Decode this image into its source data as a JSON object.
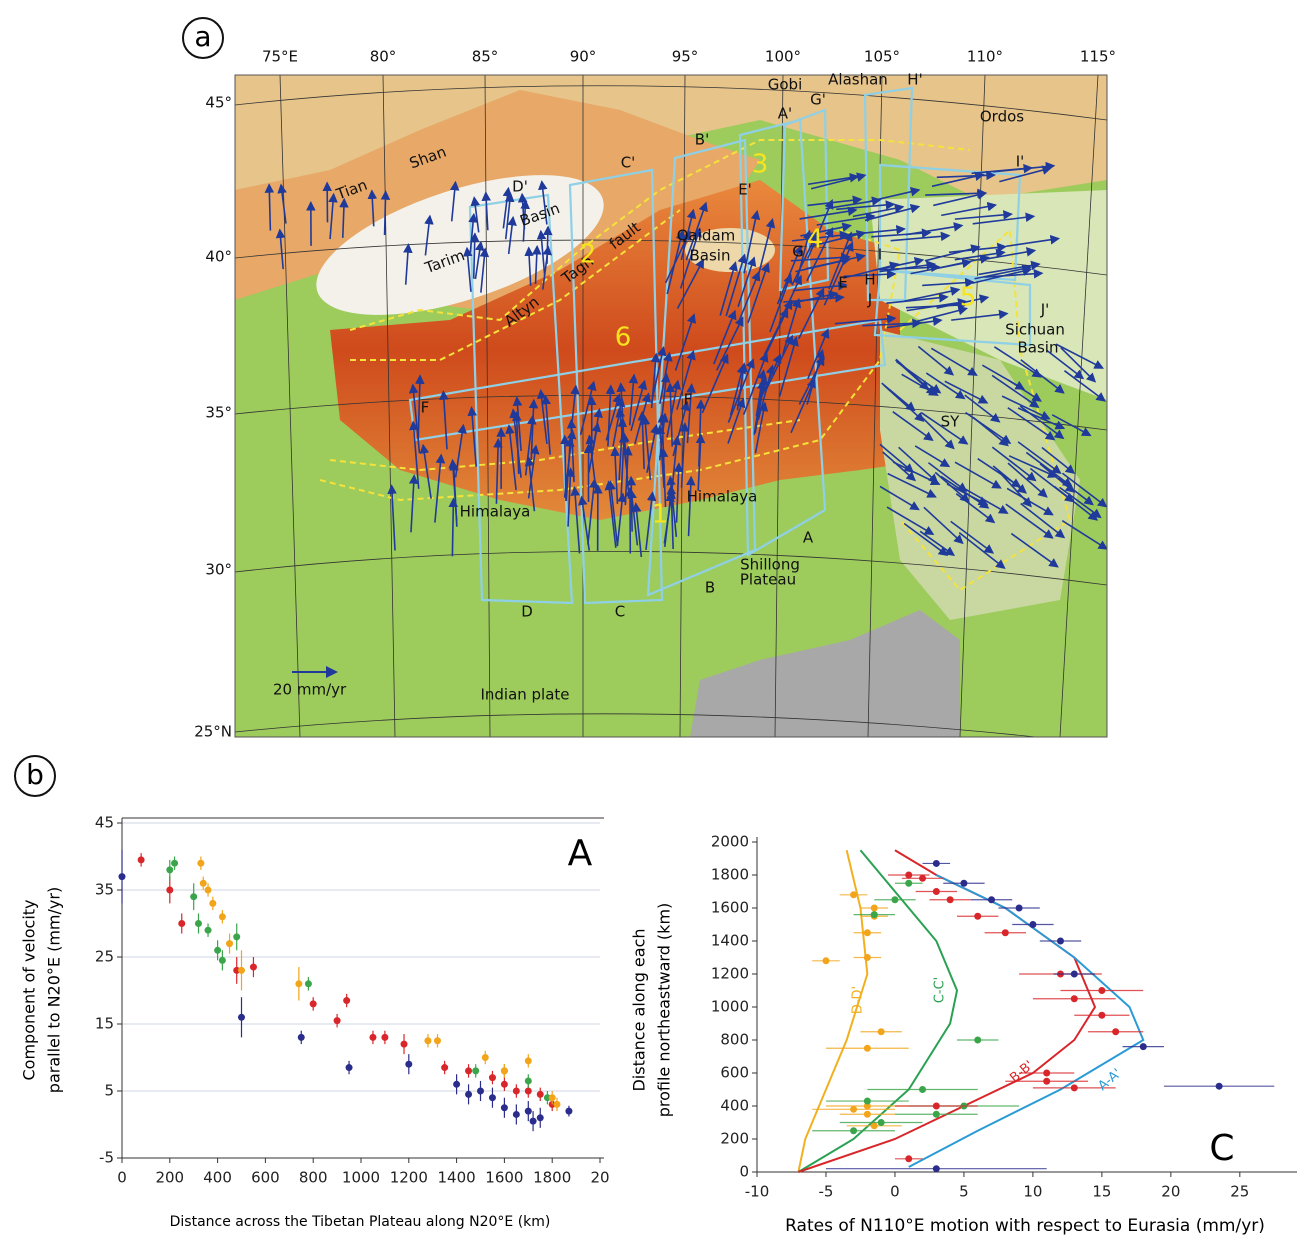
{
  "panel_labels": [
    "a",
    "b"
  ],
  "map": {
    "lon_labels": [
      "75°E",
      "80°",
      "85°",
      "90°",
      "95°",
      "100°",
      "105°",
      "110°",
      "115°"
    ],
    "lat_labels": [
      "45°",
      "40°",
      "35°",
      "30°",
      "25°N"
    ],
    "place_labels": [
      "Tian",
      "Shan",
      "Tarim",
      "Basin",
      "D'",
      "C'",
      "B'",
      "A'",
      "G'",
      "H'",
      "Gobi",
      "Alashan",
      "Ordos",
      "I'",
      "Qaidam",
      "Basin",
      "E'",
      "G",
      "I",
      "H",
      "E",
      "J",
      "J'",
      "Sichuan",
      "Basin",
      "Altyn",
      "Tagh",
      "fault",
      "F",
      "F",
      "SY",
      "Himalaya",
      "Himalaya",
      "A",
      "B",
      "C",
      "D",
      "Shillong",
      "Plateau",
      "Indian plate"
    ],
    "profile_numbers": [
      "1",
      "2",
      "3",
      "4",
      "5",
      "6"
    ],
    "scale_label": "20 mm/yr"
  },
  "chart_data": [
    {
      "type": "scatter",
      "title": "A",
      "x_label": "Distance across the Tibetan Plateau along N20°E (km)",
      "y_label": [
        "Component of velocity",
        "parallel to N20°E (mm/yr)"
      ],
      "xlim": [
        0,
        2000
      ],
      "xticks": [
        0,
        200,
        400,
        600,
        800,
        1000,
        1200,
        1400,
        1600,
        1800,
        {
          "value": 2000,
          "label": "20"
        }
      ],
      "ylim": [
        -5,
        45
      ],
      "yticks": [
        -5,
        5,
        15,
        25,
        35,
        45
      ],
      "grid": true,
      "series": [
        {
          "color": "#2b2d8c",
          "x": [
            0,
            500,
            750,
            950,
            1200,
            1400,
            1450,
            1500,
            1550,
            1600,
            1650,
            1700,
            1720,
            1750,
            1870
          ],
          "values": [
            37,
            16,
            13,
            8.5,
            9,
            6,
            4.5,
            5,
            4,
            2.5,
            1.5,
            2,
            0.5,
            1,
            2
          ],
          "errors": [
            4,
            3,
            1,
            1,
            1.5,
            1.5,
            1.5,
            1.5,
            1.5,
            1.5,
            1.5,
            1.5,
            1.5,
            1.5,
            0.8
          ]
        },
        {
          "color": "#d8262a",
          "x": [
            80,
            200,
            250,
            480,
            550,
            800,
            900,
            940,
            1050,
            1100,
            1180,
            1350,
            1450,
            1550,
            1600,
            1650,
            1700,
            1750,
            1800
          ],
          "values": [
            39.5,
            35,
            30,
            23,
            23.5,
            18,
            15.5,
            18.5,
            13,
            13,
            12,
            8.5,
            8,
            7,
            6,
            5,
            5,
            4.5,
            3
          ],
          "errors": [
            1,
            2,
            1.5,
            2,
            1.5,
            1,
            1,
            1,
            1,
            1,
            1.5,
            1,
            1,
            1,
            1,
            1,
            1,
            1,
            1
          ]
        },
        {
          "color": "#3aa54a",
          "x": [
            200,
            220,
            300,
            320,
            360,
            400,
            420,
            480,
            780,
            1480,
            1600,
            1700,
            1780
          ],
          "values": [
            38,
            39,
            34,
            30,
            29,
            26,
            24.5,
            28,
            21,
            8,
            8,
            6.5,
            4
          ],
          "errors": [
            1.5,
            1,
            2,
            1.5,
            1,
            1.5,
            1.5,
            2,
            1,
            1,
            1,
            1,
            1
          ]
        },
        {
          "color": "#f2a51a",
          "x": [
            330,
            340,
            360,
            380,
            420,
            450,
            500,
            740,
            1280,
            1320,
            1520,
            1600,
            1700,
            1800,
            1820
          ],
          "values": [
            39,
            36,
            35,
            33,
            31,
            27,
            23,
            21,
            12.5,
            12.5,
            10,
            8,
            9.5,
            4,
            3
          ],
          "errors": [
            1,
            1,
            1,
            1,
            1,
            1.5,
            3,
            2.5,
            1,
            1,
            1,
            1,
            1,
            1,
            1
          ]
        }
      ]
    },
    {
      "type": "scatter",
      "title": "C",
      "x_label": "Rates of N110°E motion with respect to Eurasia (mm/yr)",
      "y_label": [
        "Distance along each",
        "profile northeastward (km)"
      ],
      "xlim": [
        -10,
        29
      ],
      "xticks": [
        -10,
        -5,
        0,
        5,
        10,
        15,
        20,
        25
      ],
      "ylim": [
        0,
        2000
      ],
      "yticks": [
        0,
        200,
        400,
        600,
        800,
        1000,
        1200,
        1400,
        1600,
        1800,
        2000
      ],
      "grid": false,
      "curves": [
        {
          "name": "D-D'",
          "color": "#f2b01e",
          "x": [
            -7,
            -6.5,
            -5,
            -3.5,
            -2,
            -2.5,
            -3.5
          ],
          "values": [
            0,
            200,
            500,
            800,
            1200,
            1600,
            1950
          ]
        },
        {
          "name": "C-C'",
          "color": "#2aa152",
          "x": [
            -7,
            -3,
            1,
            4,
            4.5,
            3,
            0,
            -2.5
          ],
          "values": [
            0,
            200,
            500,
            900,
            1100,
            1400,
            1700,
            1950
          ]
        },
        {
          "name": "B-B'",
          "color": "#d8262a",
          "x": [
            -7,
            0,
            5,
            10,
            13,
            14.5,
            13,
            8,
            3,
            0
          ],
          "values": [
            0,
            200,
            400,
            600,
            800,
            1000,
            1300,
            1600,
            1800,
            1950
          ]
        },
        {
          "name": "A-A'",
          "color": "#2a9bd6",
          "x": [
            1,
            6,
            12,
            16,
            18,
            17,
            13,
            8,
            3
          ],
          "values": [
            30,
            250,
            500,
            700,
            800,
            1000,
            1300,
            1600,
            1800
          ]
        }
      ],
      "series": [
        {
          "color": "#f2a51a",
          "x": [
            -3,
            -5,
            -2,
            -2,
            -1.5,
            -1.5,
            -1,
            -2,
            -2,
            -2,
            -3,
            -1.5
          ],
          "values": [
            1680,
            1280,
            1300,
            1450,
            1600,
            1550,
            850,
            750,
            400,
            350,
            380,
            280
          ],
          "xerr": [
            1,
            1,
            1,
            1,
            1,
            1,
            1.5,
            3,
            3,
            2,
            3,
            2
          ]
        },
        {
          "color": "#3aa54a",
          "x": [
            -1.5,
            0,
            1,
            6,
            2,
            5,
            3,
            -1,
            -3,
            -2
          ],
          "values": [
            1560,
            1650,
            1750,
            800,
            500,
            400,
            350,
            300,
            250,
            430
          ],
          "xerr": [
            1.5,
            1.5,
            1,
            1.5,
            4,
            4,
            3,
            3,
            3,
            3
          ]
        },
        {
          "color": "#d8262a",
          "x": [
            1,
            2,
            3,
            4,
            6,
            8,
            12,
            15,
            13,
            15,
            16,
            11,
            11,
            13,
            1,
            3
          ],
          "values": [
            1800,
            1780,
            1700,
            1650,
            1550,
            1450,
            1200,
            1100,
            1050,
            950,
            850,
            600,
            550,
            510,
            80,
            400
          ],
          "xerr": [
            1.5,
            1.5,
            1.5,
            1.5,
            1.5,
            1.5,
            3,
            3,
            3,
            2,
            2,
            2,
            3,
            3,
            1,
            3
          ]
        },
        {
          "color": "#2b2d8c",
          "x": [
            3,
            5,
            7,
            9,
            10,
            12,
            13,
            18,
            23.5,
            3
          ],
          "values": [
            1870,
            1750,
            1650,
            1600,
            1500,
            1400,
            1200,
            760,
            520,
            20
          ],
          "xerr": [
            1,
            1.5,
            1.5,
            1.5,
            1.5,
            1.5,
            1.5,
            1.5,
            4,
            8
          ]
        }
      ]
    }
  ]
}
